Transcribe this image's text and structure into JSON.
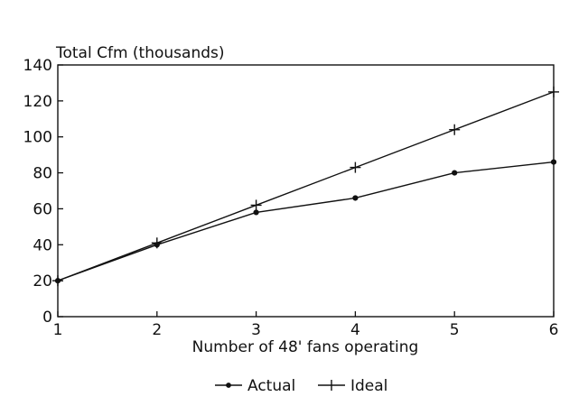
{
  "chart_data": {
    "type": "line",
    "ylabel": "Total Cfm (thousands)",
    "xlabel": "Number of 48' fans operating",
    "x": [
      1,
      2,
      3,
      4,
      5,
      6
    ],
    "xlim": [
      1,
      6
    ],
    "ylim": [
      0,
      140
    ],
    "xticks": [
      1,
      2,
      3,
      4,
      5,
      6
    ],
    "yticks": [
      0,
      20,
      40,
      60,
      80,
      100,
      120,
      140
    ],
    "grid": false,
    "legend_position": "bottom-center",
    "series": [
      {
        "name": "Actual",
        "marker": "dot",
        "values": [
          20,
          40,
          58,
          66,
          80,
          86
        ]
      },
      {
        "name": "Ideal",
        "marker": "plus",
        "values": [
          20,
          41,
          62,
          83,
          104,
          125
        ]
      }
    ]
  }
}
